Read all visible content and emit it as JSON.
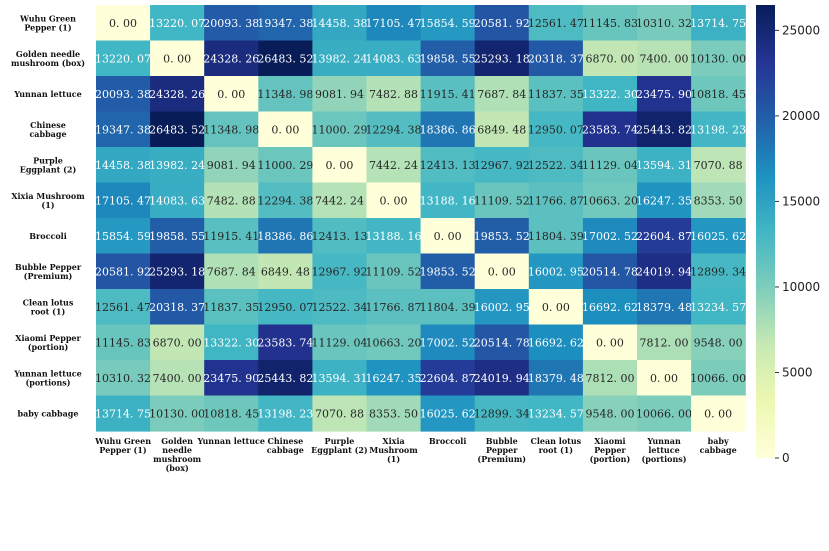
{
  "chart_data": {
    "type": "heatmap",
    "title": "",
    "xlabel": "",
    "ylabel": "",
    "labels": [
      "Wuhu Green Pepper (1)",
      "Golden needle mushroom (box)",
      "Yunnan lettuce",
      "Chinese cabbage",
      "Purple Eggplant (2)",
      "Xixia Mushroom (1)",
      "Broccoli",
      "Bubble Pepper (Premium)",
      "Clean lotus root (1)",
      "Xiaomi Pepper (portion)",
      "Yunnan lettuce (portions)",
      "baby cabbage"
    ],
    "row_label_lines": [
      [
        "Wuhu Green",
        "Pepper (1)"
      ],
      [
        "Golden needle",
        "mushroom (box)"
      ],
      [
        "Yunnan lettuce"
      ],
      [
        "Chinese",
        "cabbage"
      ],
      [
        "Purple",
        "Eggplant (2)"
      ],
      [
        "Xixia Mushroom",
        "(1)"
      ],
      [
        "Broccoli"
      ],
      [
        "Bubble Pepper",
        "(Premium)"
      ],
      [
        "Clean lotus",
        "root (1)"
      ],
      [
        "Xiaomi Pepper",
        "(portion)"
      ],
      [
        "Yunnan lettuce",
        "(portions)"
      ],
      [
        "baby cabbage"
      ]
    ],
    "col_label_lines": [
      [
        "Wuhu Green",
        "Pepper (1)"
      ],
      [
        "Golden",
        "needle",
        "mushroom",
        "(box)"
      ],
      [
        "Yunnan lettuce"
      ],
      [
        "Chinese",
        "cabbage"
      ],
      [
        "Purple",
        "Eggplant (2)"
      ],
      [
        "Xixia",
        "Mushroom",
        "(1)"
      ],
      [
        "Broccoli"
      ],
      [
        "Bubble",
        "Pepper",
        "(Premium)"
      ],
      [
        "Clean lotus",
        "root (1)"
      ],
      [
        "Xiaomi",
        "Pepper",
        "(portion)"
      ],
      [
        "Yunnan",
        "lettuce",
        "(portions)"
      ],
      [
        "baby",
        "cabbage"
      ]
    ],
    "matrix": [
      [
        0.0,
        13220.07,
        20093.38,
        19347.38,
        14458.38,
        17105.47,
        15854.59,
        20581.92,
        12561.47,
        11145.83,
        10310.32,
        13714.75
      ],
      [
        13220.07,
        0.0,
        24328.26,
        26483.52,
        13982.24,
        14083.63,
        19858.55,
        25293.18,
        20318.37,
        6870.0,
        7400.0,
        10130.0
      ],
      [
        20093.38,
        24328.26,
        0.0,
        11348.98,
        9081.94,
        7482.88,
        11915.41,
        7687.84,
        11837.35,
        13322.3,
        23475.9,
        10818.45
      ],
      [
        19347.38,
        26483.52,
        11348.98,
        0.0,
        11000.29,
        12294.38,
        18386.86,
        6849.48,
        12950.07,
        23583.74,
        25443.82,
        13198.23
      ],
      [
        14458.38,
        13982.24,
        9081.94,
        11000.29,
        0.0,
        7442.24,
        12413.13,
        12967.92,
        12522.34,
        11129.04,
        13594.31,
        7070.88
      ],
      [
        17105.47,
        14083.63,
        7482.88,
        12294.38,
        7442.24,
        0.0,
        13188.16,
        11109.52,
        11766.87,
        10663.2,
        16247.35,
        8353.5
      ],
      [
        15854.59,
        19858.55,
        11915.41,
        18386.86,
        12413.13,
        13188.16,
        0.0,
        19853.52,
        11804.39,
        17002.52,
        22604.87,
        16025.62
      ],
      [
        20581.92,
        25293.18,
        7687.84,
        6849.48,
        12967.92,
        11109.52,
        19853.52,
        0.0,
        16002.95,
        20514.78,
        24019.94,
        12899.34
      ],
      [
        12561.47,
        20318.37,
        11837.35,
        12950.07,
        12522.34,
        11766.87,
        11804.39,
        16002.95,
        0.0,
        16692.62,
        18379.48,
        13234.57
      ],
      [
        11145.83,
        6870.0,
        13322.3,
        23583.74,
        11129.04,
        10663.2,
        17002.52,
        20514.78,
        16692.62,
        0.0,
        7812.0,
        9548.0
      ],
      [
        10310.32,
        7400.0,
        23475.9,
        25443.82,
        13594.31,
        16247.35,
        22604.87,
        24019.94,
        18379.48,
        7812.0,
        0.0,
        10066.0
      ],
      [
        13714.75,
        10130.0,
        10818.45,
        13198.23,
        7070.88,
        8353.5,
        16025.62,
        12899.34,
        13234.57,
        9548.0,
        10066.0,
        0.0
      ]
    ],
    "value_format": "two decimals, space before decimal",
    "colormap": "YlGnBu",
    "colormap_stops": [
      "#ffffd9",
      "#edf8b1",
      "#c7e9b4",
      "#7fcdbb",
      "#41b6c4",
      "#1d91c0",
      "#225ea8",
      "#253494",
      "#081d58"
    ],
    "vmin": 0,
    "vmax": 26483.52,
    "colorbar_ticks": [
      0,
      5000,
      10000,
      15000,
      20000,
      25000
    ],
    "colorbar_position": "right"
  }
}
